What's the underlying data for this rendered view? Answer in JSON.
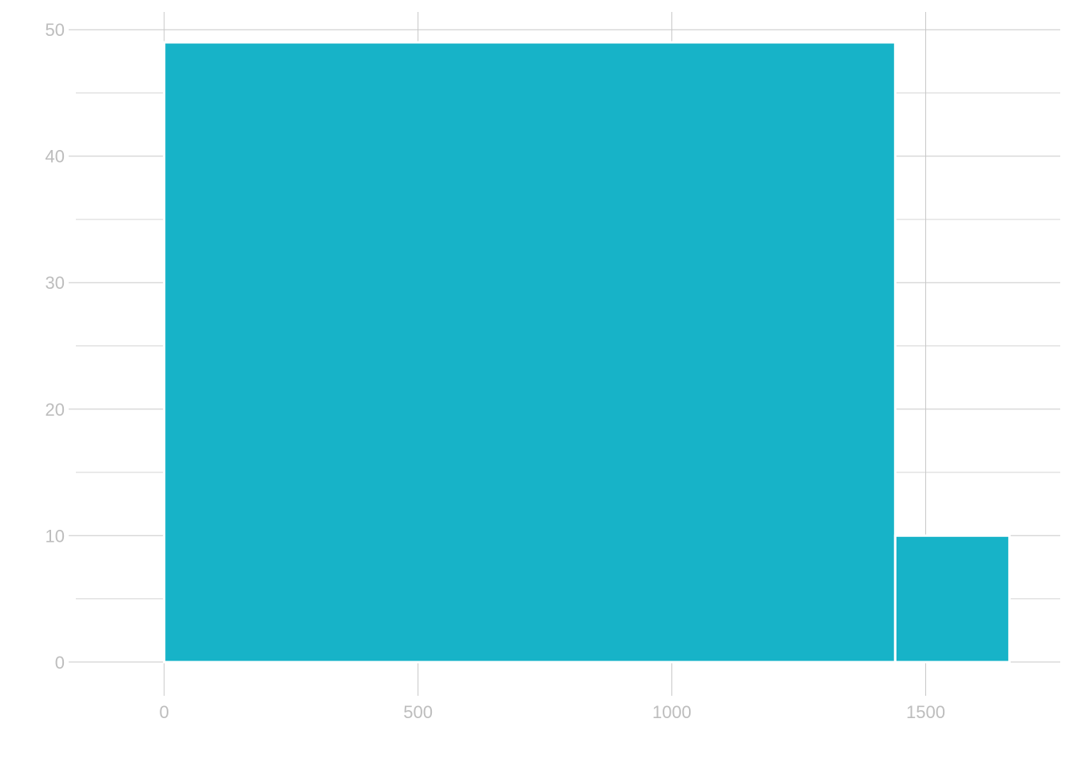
{
  "chart_data": {
    "type": "bar",
    "title": "",
    "xlabel": "",
    "ylabel": "",
    "bins": [
      {
        "x_start": 0,
        "x_end": 1440,
        "value": 49
      },
      {
        "x_start": 1440,
        "x_end": 1665,
        "value": 10
      }
    ],
    "xlim": [
      -185,
      1765
    ],
    "ylim": [
      -1.4,
      51.4
    ],
    "x_ticks": [
      0,
      500,
      1000,
      1500
    ],
    "x_tick_labels": [
      "0",
      "500",
      "1000",
      "1500"
    ],
    "y_ticks": [
      0,
      10,
      20,
      30,
      40,
      50
    ],
    "y_tick_labels": [
      "0",
      "10",
      "20",
      "30",
      "40",
      "50"
    ],
    "y_minor_ticks": [
      5,
      15,
      25,
      35,
      45
    ],
    "grid": true,
    "legend": "none",
    "colors": {
      "bar": "#17b3c8",
      "grid": "#c8c8c8",
      "tick_text": "#bdbdbd"
    }
  }
}
